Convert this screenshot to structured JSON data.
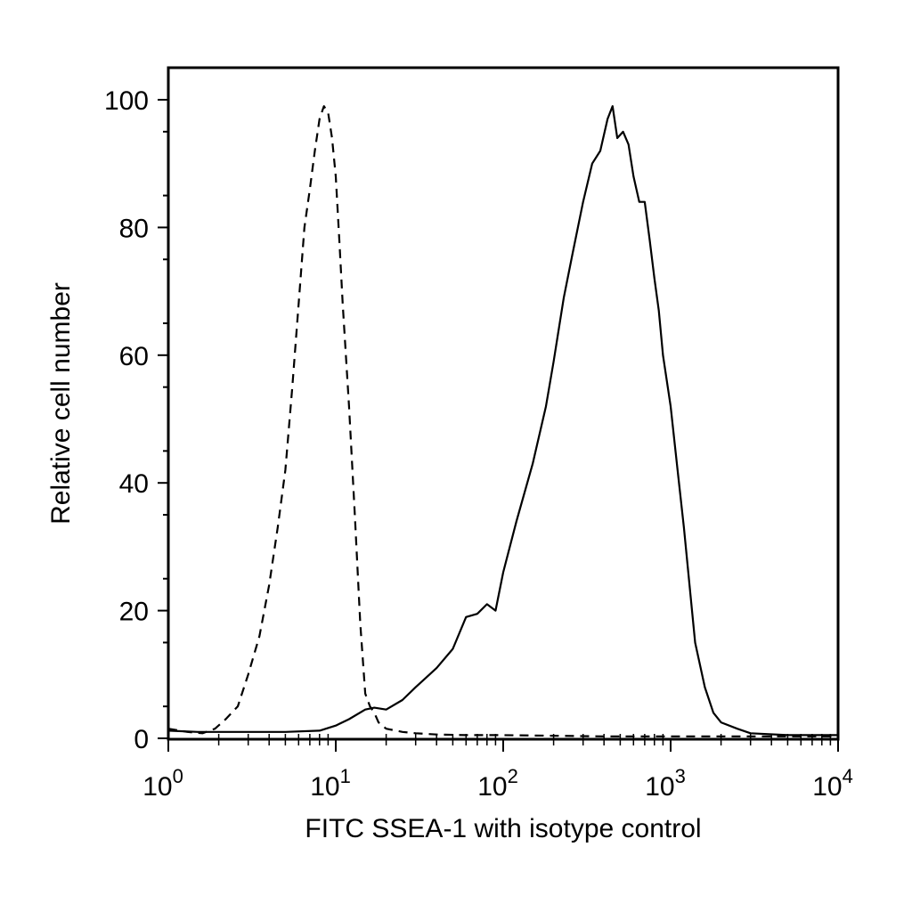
{
  "chart_data": {
    "type": "line",
    "title": "",
    "xlabel": "FITC SSEA-1 with isotype control",
    "ylabel": "Relative cell number",
    "x_scale": "log",
    "xlim": [
      1,
      10000
    ],
    "ylim": [
      0,
      100
    ],
    "grid": false,
    "legend": "none",
    "x_ticks": [
      {
        "value": 1,
        "base": "10",
        "exp": "0"
      },
      {
        "value": 10,
        "base": "10",
        "exp": "1"
      },
      {
        "value": 100,
        "base": "10",
        "exp": "2"
      },
      {
        "value": 1000,
        "base": "10",
        "exp": "3"
      },
      {
        "value": 10000,
        "base": "10",
        "exp": "4"
      }
    ],
    "y_ticks": [
      {
        "value": 0,
        "label": "0"
      },
      {
        "value": 20,
        "label": "20"
      },
      {
        "value": 40,
        "label": "40"
      },
      {
        "value": 60,
        "label": "60"
      },
      {
        "value": 80,
        "label": "80"
      },
      {
        "value": 100,
        "label": "100"
      }
    ],
    "series": [
      {
        "style": "dashed",
        "color": "#000000",
        "x": [
          1.0,
          1.3,
          1.6,
          1.9,
          2.2,
          2.6,
          3.0,
          3.5,
          4.0,
          4.5,
          5.0,
          5.5,
          6.0,
          6.5,
          7.0,
          7.5,
          8.0,
          8.5,
          9.0,
          9.5,
          10.0,
          10.5,
          11.0,
          12.0,
          13.0,
          14.0,
          15.0,
          16.0,
          17.0,
          18.0,
          20.0,
          25.0,
          30.0,
          40.0,
          60.0,
          100.0,
          200.0,
          400.0,
          1000.0,
          3000.0,
          10000.0
        ],
        "y": [
          1.5,
          1.0,
          0.8,
          1.5,
          3.0,
          5.0,
          10.0,
          16.0,
          24.0,
          33.0,
          42.0,
          55.0,
          68.0,
          80.0,
          86.0,
          92.0,
          97.0,
          99.0,
          98.0,
          94.0,
          88.0,
          78.0,
          68.0,
          52.0,
          35.0,
          18.0,
          7.0,
          5.0,
          4.0,
          2.5,
          1.5,
          1.0,
          0.8,
          0.6,
          0.5,
          0.5,
          0.4,
          0.3,
          0.3,
          0.3,
          0.3
        ]
      },
      {
        "style": "solid",
        "color": "#000000",
        "x": [
          1.0,
          1.5,
          2.0,
          3.0,
          5.0,
          8.0,
          10.0,
          12.0,
          15.0,
          17.0,
          20.0,
          25.0,
          30.0,
          40.0,
          50.0,
          60.0,
          70.0,
          80.0,
          90.0,
          100.0,
          120.0,
          150.0,
          180.0,
          200.0,
          230.0,
          260.0,
          300.0,
          340.0,
          380.0,
          420.0,
          450.0,
          480.0,
          520.0,
          560.0,
          600.0,
          650.0,
          700.0,
          750.0,
          800.0,
          850.0,
          900.0,
          1000.0,
          1100.0,
          1200.0,
          1400.0,
          1600.0,
          1800.0,
          2000.0,
          2500.0,
          3000.0,
          5000.0,
          10000.0
        ],
        "y": [
          1.2,
          1.0,
          1.0,
          1.0,
          1.0,
          1.2,
          2.0,
          3.0,
          4.5,
          4.8,
          4.5,
          6.0,
          8.0,
          11.0,
          14.0,
          19.0,
          19.5,
          21.0,
          20.0,
          26.0,
          34.0,
          43.0,
          52.0,
          59.0,
          69.0,
          76.0,
          84.0,
          90.0,
          92.0,
          97.0,
          99.0,
          94.0,
          95.0,
          93.0,
          88.0,
          84.0,
          84.0,
          78.0,
          72.0,
          67.0,
          60.0,
          52.0,
          42.0,
          33.0,
          15.0,
          8.0,
          4.0,
          2.5,
          1.5,
          0.8,
          0.5,
          0.5
        ]
      }
    ]
  }
}
